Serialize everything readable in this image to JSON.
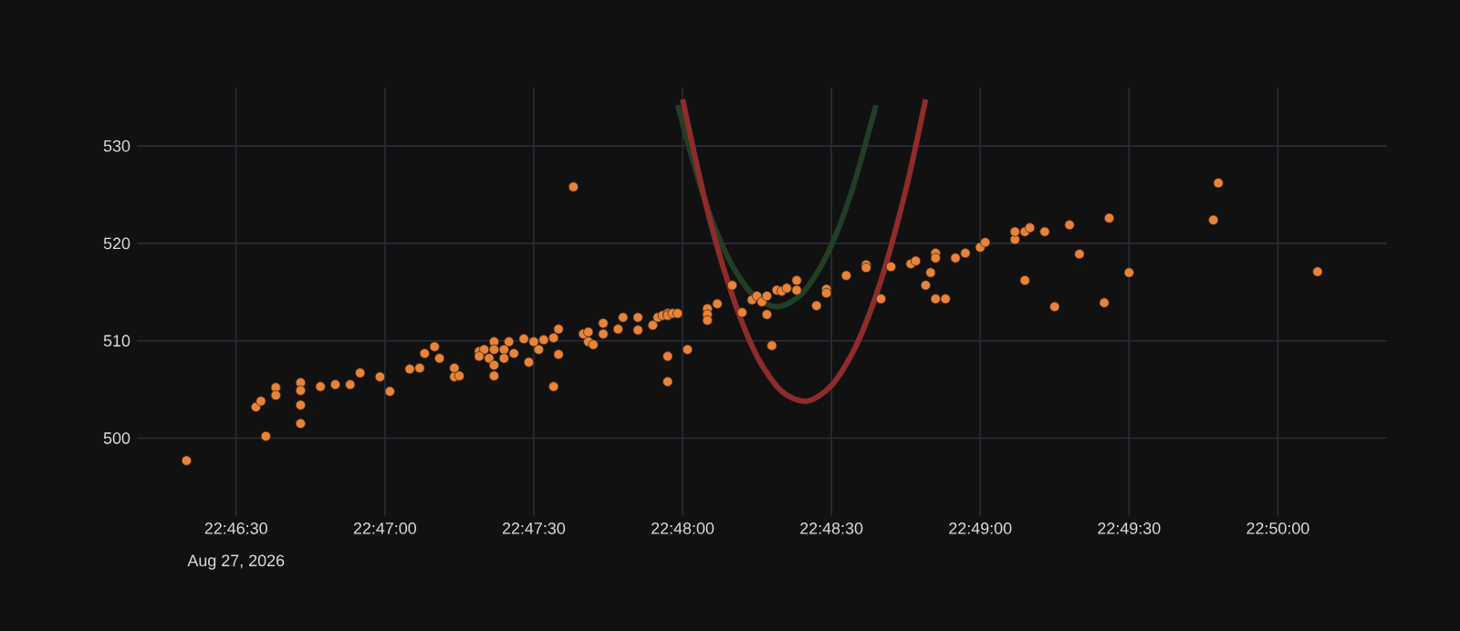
{
  "chart_data": {
    "type": "scatter",
    "xlim": [
      "2026-08-27T22:46:10",
      "2026-08-27T22:50:22"
    ],
    "ylim": [
      492,
      536
    ],
    "xticks": [
      {
        "value": "2026-08-27T22:46:30",
        "label": "22:46:30"
      },
      {
        "value": "2026-08-27T22:47:00",
        "label": "22:47:00"
      },
      {
        "value": "2026-08-27T22:47:30",
        "label": "22:47:30"
      },
      {
        "value": "2026-08-27T22:48:00",
        "label": "22:48:00"
      },
      {
        "value": "2026-08-27T22:48:30",
        "label": "22:48:30"
      },
      {
        "value": "2026-08-27T22:49:00",
        "label": "22:49:00"
      },
      {
        "value": "2026-08-27T22:49:30",
        "label": "22:49:30"
      },
      {
        "value": "2026-08-27T22:50:00",
        "label": "22:50:00"
      }
    ],
    "yticks": [
      500,
      510,
      520,
      530
    ],
    "annotations": [
      "Aug 27, 2026"
    ],
    "grid": true,
    "series": [
      {
        "marker": "circle",
        "color": "#e8843a",
        "x": [
          "2026-08-27T22:46:20",
          "2026-08-27T22:46:34",
          "2026-08-27T22:46:35",
          "2026-08-27T22:46:38",
          "2026-08-27T22:46:38",
          "2026-08-27T22:46:36",
          "2026-08-27T22:46:43",
          "2026-08-27T22:46:43",
          "2026-08-27T22:46:43",
          "2026-08-27T22:46:43",
          "2026-08-27T22:46:47",
          "2026-08-27T22:46:50",
          "2026-08-27T22:46:53",
          "2026-08-27T22:46:55",
          "2026-08-27T22:46:59",
          "2026-08-27T22:47:01",
          "2026-08-27T22:47:05",
          "2026-08-27T22:47:07",
          "2026-08-27T22:47:08",
          "2026-08-27T22:47:10",
          "2026-08-27T22:47:11",
          "2026-08-27T22:47:14",
          "2026-08-27T22:47:14",
          "2026-08-27T22:47:15",
          "2026-08-27T22:47:19",
          "2026-08-27T22:47:20",
          "2026-08-27T22:47:19",
          "2026-08-27T22:47:21",
          "2026-08-27T22:47:22",
          "2026-08-27T22:47:22",
          "2026-08-27T22:47:22",
          "2026-08-27T22:47:22",
          "2026-08-27T22:47:24",
          "2026-08-27T22:47:24",
          "2026-08-27T22:47:25",
          "2026-08-27T22:47:26",
          "2026-08-27T22:47:28",
          "2026-08-27T22:47:29",
          "2026-08-27T22:47:30",
          "2026-08-27T22:47:31",
          "2026-08-27T22:47:32",
          "2026-08-27T22:47:34",
          "2026-08-27T22:47:35",
          "2026-08-27T22:47:34",
          "2026-08-27T22:47:35",
          "2026-08-27T22:47:38",
          "2026-08-27T22:47:40",
          "2026-08-27T22:47:41",
          "2026-08-27T22:47:41",
          "2026-08-27T22:47:42",
          "2026-08-27T22:47:44",
          "2026-08-27T22:47:44",
          "2026-08-27T22:47:47",
          "2026-08-27T22:47:48",
          "2026-08-27T22:47:51",
          "2026-08-27T22:47:51",
          "2026-08-27T22:47:54",
          "2026-08-27T22:47:55",
          "2026-08-27T22:47:56",
          "2026-08-27T22:47:57",
          "2026-08-27T22:47:57",
          "2026-08-27T22:47:58",
          "2026-08-27T22:47:59",
          "2026-08-27T22:47:57",
          "2026-08-27T22:47:57",
          "2026-08-27T22:48:01",
          "2026-08-27T22:48:05",
          "2026-08-27T22:48:05",
          "2026-08-27T22:48:05",
          "2026-08-27T22:48:07",
          "2026-08-27T22:48:10",
          "2026-08-27T22:48:12",
          "2026-08-27T22:48:14",
          "2026-08-27T22:48:15",
          "2026-08-27T22:48:16",
          "2026-08-27T22:48:17",
          "2026-08-27T22:48:17",
          "2026-08-27T22:48:18",
          "2026-08-27T22:48:19",
          "2026-08-27T22:48:20",
          "2026-08-27T22:48:21",
          "2026-08-27T22:48:23",
          "2026-08-27T22:48:23",
          "2026-08-27T22:48:27",
          "2026-08-27T22:48:29",
          "2026-08-27T22:48:29",
          "2026-08-27T22:48:33",
          "2026-08-27T22:48:37",
          "2026-08-27T22:48:37",
          "2026-08-27T22:48:40",
          "2026-08-27T22:48:42",
          "2026-08-27T22:48:46",
          "2026-08-27T22:48:47",
          "2026-08-27T22:48:50",
          "2026-08-27T22:48:51",
          "2026-08-27T22:48:51",
          "2026-08-27T22:48:49",
          "2026-08-27T22:48:51",
          "2026-08-27T22:48:53",
          "2026-08-27T22:48:55",
          "2026-08-27T22:48:57",
          "2026-08-27T22:49:00",
          "2026-08-27T22:49:01",
          "2026-08-27T22:49:07",
          "2026-08-27T22:49:07",
          "2026-08-27T22:49:09",
          "2026-08-27T22:49:09",
          "2026-08-27T22:49:10",
          "2026-08-27T22:49:13",
          "2026-08-27T22:49:15",
          "2026-08-27T22:49:18",
          "2026-08-27T22:49:20",
          "2026-08-27T22:49:25",
          "2026-08-27T22:49:26",
          "2026-08-27T22:49:30",
          "2026-08-27T22:49:47",
          "2026-08-27T22:49:48",
          "2026-08-27T22:50:08"
        ],
        "values": [
          497.7,
          503.2,
          503.8,
          505.2,
          504.4,
          500.2,
          505.7,
          504.9,
          503.4,
          501.5,
          505.3,
          505.5,
          505.5,
          506.7,
          506.3,
          504.8,
          507.1,
          507.2,
          508.7,
          509.4,
          508.2,
          507.2,
          506.3,
          506.4,
          508.9,
          509.1,
          508.4,
          508.2,
          509.9,
          509.1,
          507.5,
          506.4,
          509.1,
          508.2,
          509.9,
          508.7,
          510.2,
          507.8,
          509.9,
          509.1,
          510.1,
          510.3,
          508.6,
          505.3,
          511.2,
          525.8,
          510.7,
          510.9,
          509.9,
          509.6,
          511.8,
          510.7,
          511.2,
          512.4,
          512.4,
          511.1,
          511.6,
          512.4,
          512.6,
          512.8,
          512.6,
          512.8,
          512.8,
          508.4,
          505.8,
          509.1,
          513.3,
          512.7,
          512.1,
          513.8,
          515.7,
          512.9,
          514.2,
          514.6,
          514.0,
          514.6,
          512.7,
          509.5,
          515.2,
          515.1,
          515.4,
          515.2,
          516.2,
          513.6,
          515.3,
          514.9,
          516.7,
          517.8,
          517.5,
          514.3,
          517.6,
          517.9,
          518.2,
          517.0,
          519.0,
          518.5,
          515.7,
          514.3,
          514.3,
          518.5,
          519.0,
          519.6,
          520.1,
          520.4,
          521.2,
          516.2,
          521.2,
          521.6,
          521.2,
          513.5,
          521.9,
          518.9,
          513.9,
          522.6,
          517.0,
          522.4,
          526.2,
          517.1
        ]
      },
      {
        "type": "line",
        "color": "#233d26",
        "x": [
          "2026-08-27T22:47:59",
          "2026-08-27T22:48:04",
          "2026-08-27T22:48:09",
          "2026-08-27T22:48:14",
          "2026-08-27T22:48:19",
          "2026-08-27T22:48:24",
          "2026-08-27T22:48:29",
          "2026-08-27T22:48:34",
          "2026-08-27T22:48:39"
        ],
        "values": [
          534.2,
          525.2,
          518.7,
          514.8,
          513.5,
          514.8,
          518.7,
          525.2,
          534.2
        ]
      },
      {
        "type": "line",
        "color": "#8e2c2c",
        "x": [
          "2026-08-27T22:48:00",
          "2026-08-27T22:48:05",
          "2026-08-27T22:48:10",
          "2026-08-27T22:48:15",
          "2026-08-27T22:48:20",
          "2026-08-27T22:48:25",
          "2026-08-27T22:48:30",
          "2026-08-27T22:48:35",
          "2026-08-27T22:48:40",
          "2026-08-27T22:48:45",
          "2026-08-27T22:48:49"
        ],
        "values": [
          534.8,
          523.4,
          514.7,
          508.4,
          504.8,
          503.8,
          505.4,
          509.5,
          516.2,
          525.5,
          534.8
        ]
      }
    ]
  }
}
